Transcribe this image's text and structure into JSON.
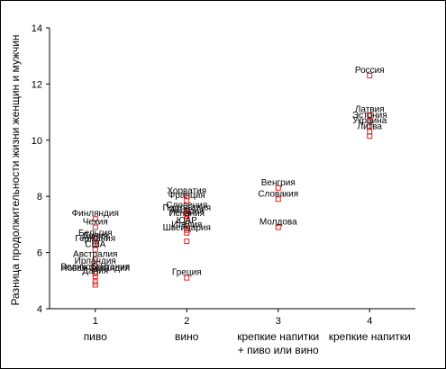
{
  "chart_data": {
    "type": "scatter",
    "title": "",
    "xlabel": "",
    "ylabel": "Разница продолжительности жизни женщин и мужчин",
    "ylim": [
      4,
      14
    ],
    "yticks": [
      4,
      6,
      8,
      10,
      12,
      14
    ],
    "xlim": [
      0.5,
      4.5
    ],
    "xticks": [
      1,
      2,
      3,
      4
    ],
    "categories": [
      {
        "x": 1,
        "tick": "1",
        "label_lines": [
          "пиво"
        ]
      },
      {
        "x": 2,
        "tick": "2",
        "label_lines": [
          "вино"
        ]
      },
      {
        "x": 3,
        "tick": "3",
        "label_lines": [
          "крепкие напитки",
          "+ пиво или вино"
        ]
      },
      {
        "x": 4,
        "tick": "4",
        "label_lines": [
          "крепкие напитки"
        ]
      }
    ],
    "grid": false,
    "marker": "hollow-square",
    "colors": {
      "marker": "#e02020",
      "text": "#000000",
      "axis": "#000000"
    },
    "points": [
      {
        "x": 1,
        "y": 7.2,
        "label": "Финляндия"
      },
      {
        "x": 1,
        "y": 6.9,
        "label": "Чехия"
      },
      {
        "x": 1,
        "y": 6.5,
        "label": "Бельгия"
      },
      {
        "x": 1,
        "y": 6.4,
        "label": "Дания"
      },
      {
        "x": 1,
        "y": 6.3,
        "label": "Германия"
      },
      {
        "x": 1,
        "y": 6.1,
        "label": "США"
      },
      {
        "x": 1,
        "y": 5.75,
        "label": "Австралия"
      },
      {
        "x": 1,
        "y": 5.5,
        "label": "Ирландия"
      },
      {
        "x": 1,
        "y": 5.3,
        "label": "Великобритания"
      },
      {
        "x": 1,
        "y": 5.25,
        "label": "Новая Зеландия"
      },
      {
        "x": 1,
        "y": 5.15,
        "label": "Дания"
      },
      {
        "x": 1,
        "y": 4.95,
        "label": ""
      },
      {
        "x": 1,
        "y": 4.85,
        "label": ""
      },
      {
        "x": 2,
        "y": 8.0,
        "label": "Хорватия"
      },
      {
        "x": 2,
        "y": 7.85,
        "label": "Франция"
      },
      {
        "x": 2,
        "y": 7.5,
        "label": "Словения"
      },
      {
        "x": 2,
        "y": 7.4,
        "label": "Португалия"
      },
      {
        "x": 2,
        "y": 7.3,
        "label": "Австрия"
      },
      {
        "x": 2,
        "y": 7.2,
        "label": "Испания"
      },
      {
        "x": 2,
        "y": 6.95,
        "label": "ЮАР"
      },
      {
        "x": 2,
        "y": 6.8,
        "label": "Италия"
      },
      {
        "x": 2,
        "y": 6.7,
        "label": "Швейцария"
      },
      {
        "x": 2,
        "y": 6.4,
        "label": ""
      },
      {
        "x": 2,
        "y": 5.1,
        "label": "Греция"
      },
      {
        "x": 3,
        "y": 8.3,
        "label": "Венгрия"
      },
      {
        "x": 3,
        "y": 7.9,
        "label": "Словакия"
      },
      {
        "x": 3,
        "y": 6.9,
        "label": "Молдова"
      },
      {
        "x": 4,
        "y": 12.3,
        "label": "Россия"
      },
      {
        "x": 4,
        "y": 10.9,
        "label": "Латвия"
      },
      {
        "x": 4,
        "y": 10.7,
        "label": "Эстония"
      },
      {
        "x": 4,
        "y": 10.5,
        "label": "Украина"
      },
      {
        "x": 4,
        "y": 10.3,
        "label": "Литва"
      },
      {
        "x": 4,
        "y": 10.15,
        "label": ""
      }
    ]
  }
}
